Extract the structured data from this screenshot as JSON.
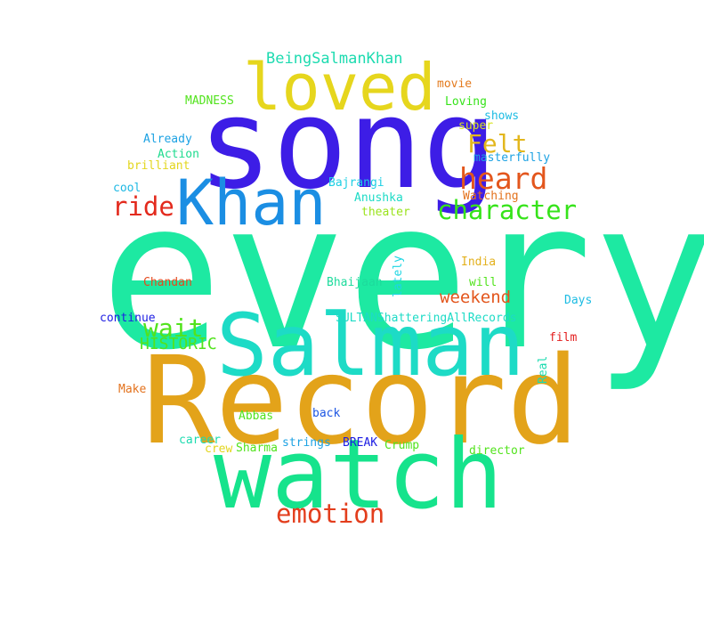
{
  "words": {
    "every": {
      "text": "every",
      "color": "#1de9a2"
    },
    "record": {
      "text": "Record",
      "color": "#e3a31a"
    },
    "song": {
      "text": "song",
      "color": "#3d1de6"
    },
    "watch": {
      "text": "watch",
      "color": "#16e38c"
    },
    "salman": {
      "text": "Salman",
      "color": "#1ddbc6"
    },
    "khan": {
      "text": "Khan",
      "color": "#1b8ee3"
    },
    "loved": {
      "text": "loved",
      "color": "#e6d61d"
    },
    "character": {
      "text": "character",
      "color": "#36e31a"
    },
    "heard": {
      "text": "heard",
      "color": "#e3561d"
    },
    "emotion": {
      "text": "emotion",
      "color": "#e33e1d"
    },
    "felt": {
      "text": "Felt",
      "color": "#e3b71d"
    },
    "ride": {
      "text": "ride",
      "color": "#e32a1d"
    },
    "wait": {
      "text": "wait",
      "color": "#52e31d"
    },
    "weekend": {
      "text": "weekend",
      "color": "#e3561d"
    },
    "historic": {
      "text": "HISTORIC",
      "color": "#52e31d"
    },
    "being": {
      "text": "BeingSalmanKhan",
      "color": "#1ddbb0"
    },
    "madness": {
      "text": "MADNESS",
      "color": "#52e31d"
    },
    "movie": {
      "text": "movie",
      "color": "#e37a1d"
    },
    "loving": {
      "text": "Loving",
      "color": "#36e31a"
    },
    "shows": {
      "text": "shows",
      "color": "#1dbce3"
    },
    "super": {
      "text": "super",
      "color": "#d6e31d"
    },
    "already": {
      "text": "Already",
      "color": "#1da2e3"
    },
    "action": {
      "text": "Action",
      "color": "#1ddb8e"
    },
    "brilliant": {
      "text": "brilliant",
      "color": "#e3d61d"
    },
    "masterfully": {
      "text": "masterfully",
      "color": "#1da2e3"
    },
    "bajrangi": {
      "text": "Bajrangi",
      "color": "#1dcfe3"
    },
    "cool": {
      "text": "cool",
      "color": "#1db8e3"
    },
    "watching": {
      "text": "Watching",
      "color": "#e3721d"
    },
    "anushka": {
      "text": "Anushka",
      "color": "#1ddbc6"
    },
    "theater": {
      "text": "theater",
      "color": "#9be31d"
    },
    "india": {
      "text": "India",
      "color": "#e3b11d"
    },
    "lately": {
      "text": "lately",
      "color": "#1dd6e3"
    },
    "will": {
      "text": "will",
      "color": "#52e31d"
    },
    "chandan": {
      "text": "Chandan",
      "color": "#e34a1d"
    },
    "bhaijaan": {
      "text": "Bhaijaan",
      "color": "#1ddb9c"
    },
    "days": {
      "text": "Days",
      "color": "#1dbce3"
    },
    "continue": {
      "text": "continue",
      "color": "#1d1de3"
    },
    "sultan": {
      "text": "SULTANShatteringAllRecords",
      "color": "#1ddbc6"
    },
    "film": {
      "text": "film",
      "color": "#e31d1d"
    },
    "real": {
      "text": "Real",
      "color": "#1ddbb0"
    },
    "make": {
      "text": "Make",
      "color": "#e3721d"
    },
    "back": {
      "text": "back",
      "color": "#1d56e3"
    },
    "abbas": {
      "text": "Abbas",
      "color": "#52e31d"
    },
    "career": {
      "text": "career",
      "color": "#1ddbb0"
    },
    "strings": {
      "text": "strings",
      "color": "#1da2e3"
    },
    "break": {
      "text": "BREAK",
      "color": "#1d1de3"
    },
    "crump": {
      "text": "Crump",
      "color": "#52e31d"
    },
    "crew": {
      "text": "crew",
      "color": "#e3d61d"
    },
    "sharma": {
      "text": "Sharma",
      "color": "#52e31d"
    },
    "director": {
      "text": "director",
      "color": "#52e31d"
    }
  }
}
